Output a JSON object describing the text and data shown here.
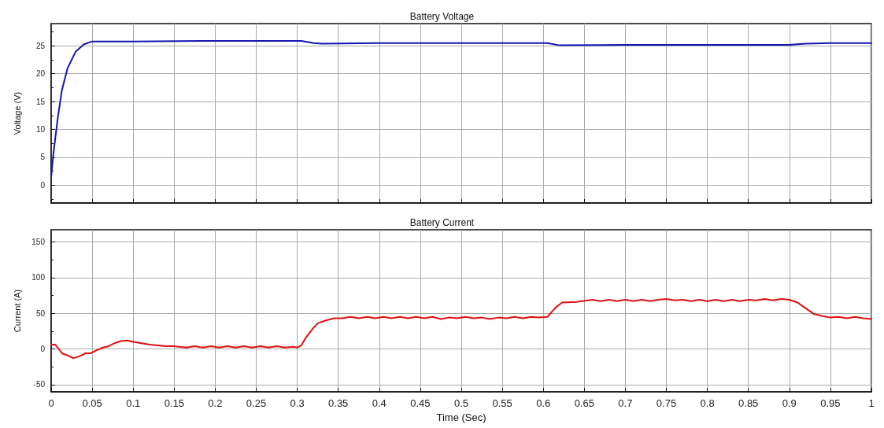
{
  "chart_data": [
    {
      "type": "line",
      "title": "Battery Voltage",
      "ylabel": "Voltage (V)",
      "x": [
        0,
        0.003,
        0.008,
        0.013,
        0.02,
        0.03,
        0.04,
        0.05,
        0.1,
        0.2,
        0.3,
        0.305,
        0.32,
        0.33,
        0.4,
        0.5,
        0.6,
        0.605,
        0.62,
        0.7,
        0.8,
        0.9,
        0.92,
        0.95,
        1
      ],
      "series": [
        {
          "color": "#1414b4",
          "values": [
            1.5,
            6,
            12,
            17,
            21,
            24,
            25.3,
            25.8,
            25.8,
            25.9,
            25.9,
            25.9,
            25.5,
            25.4,
            25.5,
            25.5,
            25.5,
            25.5,
            25.1,
            25.2,
            25.2,
            25.2,
            25.4,
            25.5,
            25.5
          ]
        }
      ],
      "xlim": [
        0,
        1
      ],
      "ylim": [
        -3.2,
        29
      ],
      "xticks": [
        0,
        0.05,
        0.1,
        0.15,
        0.2,
        0.25,
        0.3,
        0.35,
        0.4,
        0.45,
        0.5,
        0.55,
        0.6,
        0.65,
        0.7,
        0.75,
        0.8,
        0.85,
        0.9,
        0.95,
        1
      ],
      "yticks": [
        0,
        5,
        10,
        15,
        20,
        25
      ],
      "grid": true,
      "tick_labels": "y"
    },
    {
      "type": "line",
      "title": "Battery Current",
      "xlabel": "Time (Sec)",
      "ylabel": "Current (A)",
      "x": [
        0,
        0.005,
        0.01,
        0.013,
        0.02,
        0.027,
        0.035,
        0.042,
        0.048,
        0.055,
        0.063,
        0.07,
        0.077,
        0.085,
        0.093,
        0.1,
        0.11,
        0.12,
        0.13,
        0.14,
        0.15,
        0.155,
        0.165,
        0.175,
        0.185,
        0.195,
        0.205,
        0.215,
        0.225,
        0.235,
        0.245,
        0.255,
        0.265,
        0.275,
        0.285,
        0.295,
        0.3,
        0.305,
        0.31,
        0.32,
        0.325,
        0.335,
        0.345,
        0.355,
        0.365,
        0.375,
        0.385,
        0.395,
        0.405,
        0.415,
        0.425,
        0.435,
        0.445,
        0.455,
        0.465,
        0.475,
        0.485,
        0.495,
        0.505,
        0.515,
        0.525,
        0.535,
        0.545,
        0.555,
        0.565,
        0.575,
        0.585,
        0.595,
        0.605,
        0.615,
        0.623,
        0.64,
        0.66,
        0.67,
        0.68,
        0.69,
        0.7,
        0.71,
        0.72,
        0.73,
        0.74,
        0.75,
        0.76,
        0.77,
        0.78,
        0.79,
        0.8,
        0.81,
        0.82,
        0.83,
        0.84,
        0.85,
        0.86,
        0.87,
        0.88,
        0.89,
        0.9,
        0.91,
        0.92,
        0.93,
        0.94,
        0.95,
        0.96,
        0.97,
        0.98,
        0.99,
        1
      ],
      "series": [
        {
          "color": "#e01010",
          "values": [
            6,
            6,
            -1,
            -6,
            -9,
            -13,
            -10,
            -6,
            -6,
            -2,
            2,
            4,
            8,
            11,
            12,
            10,
            8,
            6,
            5,
            4,
            4,
            3,
            2,
            4,
            2,
            4,
            2,
            4,
            2,
            4,
            2,
            4,
            2,
            4,
            2,
            3,
            2,
            5,
            15,
            30,
            36,
            40,
            43,
            43,
            45,
            43,
            45,
            43,
            45,
            43,
            45,
            43,
            45,
            43,
            45,
            42,
            44,
            43,
            45,
            43,
            44,
            42,
            44,
            43,
            45,
            43,
            45,
            44,
            45,
            58,
            65,
            66,
            69,
            67,
            69,
            67,
            69,
            67,
            69,
            67,
            69,
            70,
            68,
            69,
            67,
            69,
            67,
            69,
            67,
            69,
            67,
            69,
            68,
            70,
            68,
            70,
            69,
            65,
            57,
            49,
            46,
            44,
            45,
            43,
            45,
            43,
            42
          ]
        }
      ],
      "xlim": [
        0,
        1
      ],
      "ylim": [
        -60,
        167
      ],
      "xticks": [
        0,
        0.05,
        0.1,
        0.15,
        0.2,
        0.25,
        0.3,
        0.35,
        0.4,
        0.45,
        0.5,
        0.55,
        0.6,
        0.65,
        0.7,
        0.75,
        0.8,
        0.85,
        0.9,
        0.95,
        1
      ],
      "yticks": [
        -50,
        0,
        50,
        100,
        150
      ],
      "grid": true
    }
  ]
}
